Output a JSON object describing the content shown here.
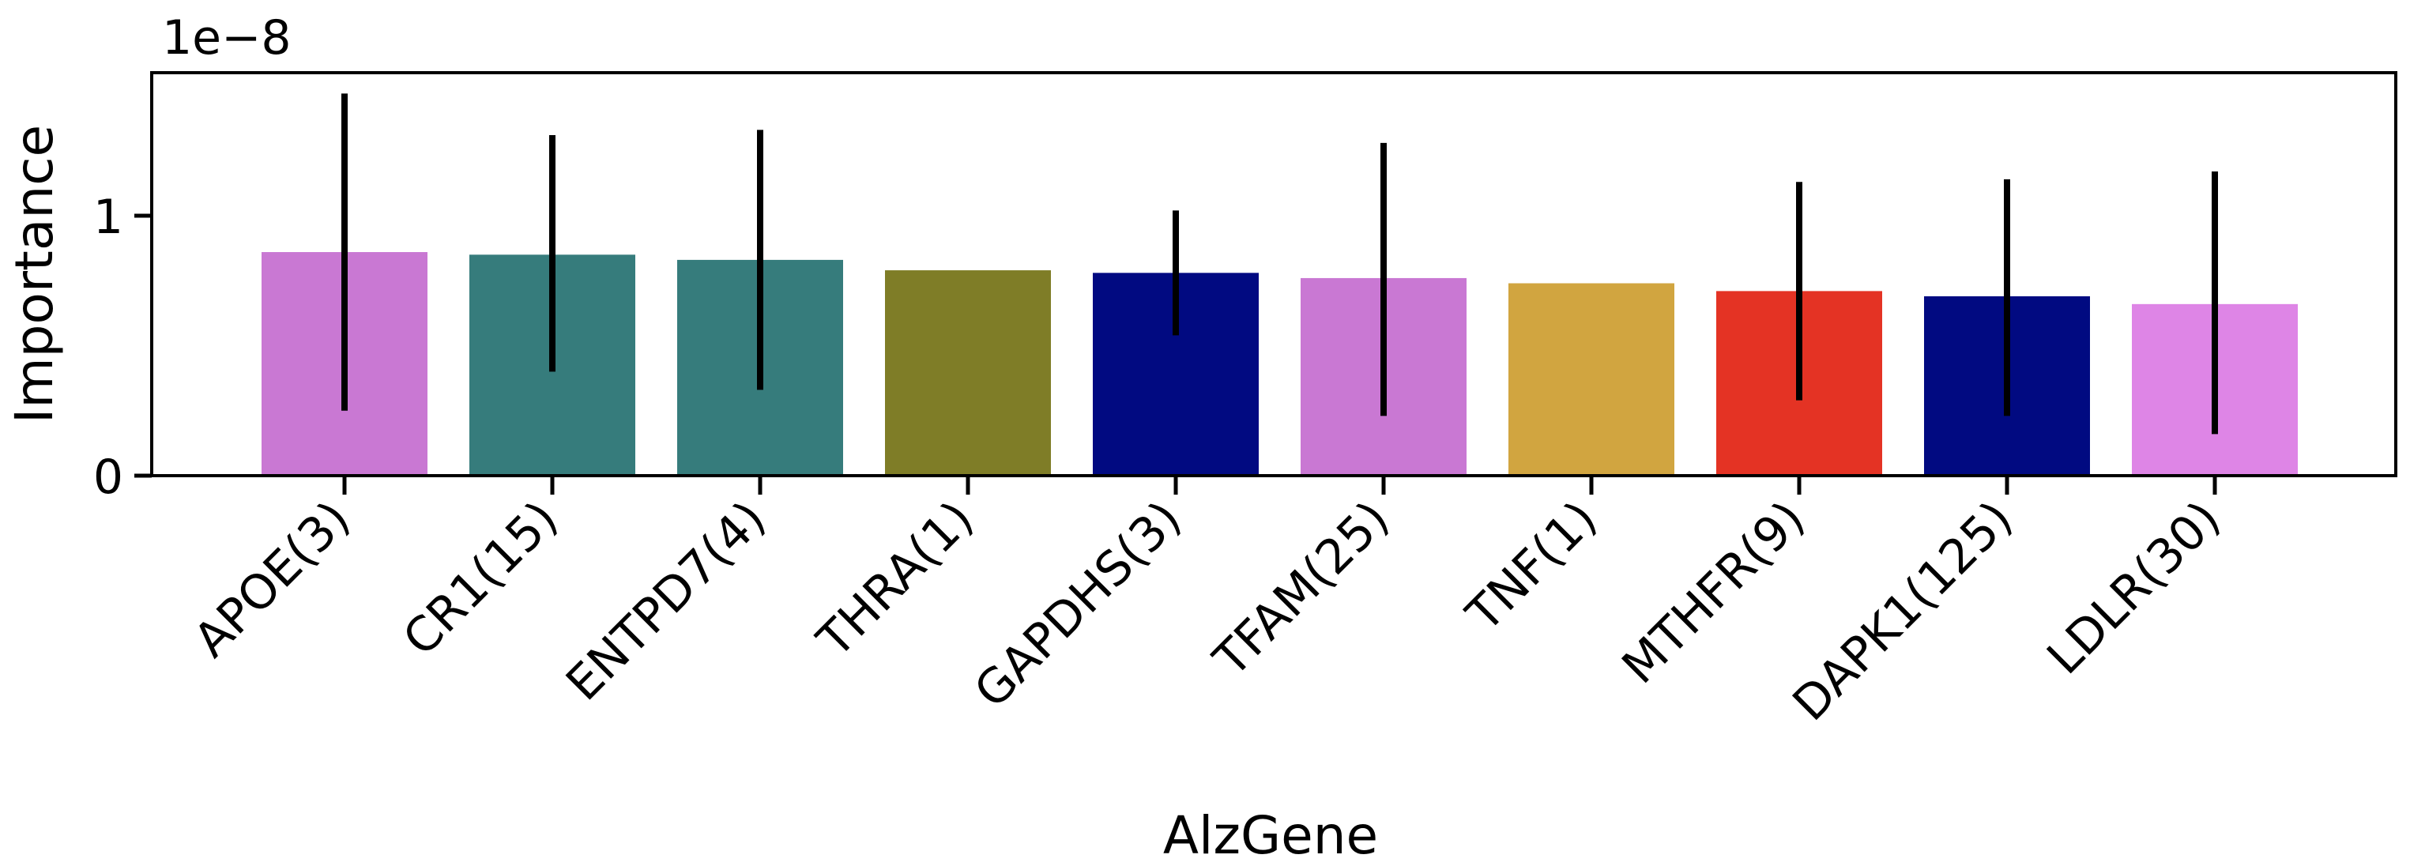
{
  "chart_data": {
    "type": "bar",
    "xlabel": "AlzGene",
    "ylabel": "Importance",
    "offset_text": "1e−8",
    "ylim": [
      0,
      1.55
    ],
    "yticks": [
      {
        "value": 0,
        "label": "0"
      },
      {
        "value": 1,
        "label": "1"
      }
    ],
    "categories": [
      "APOE(3)",
      "CR1(15)",
      "ENTPD7(4)",
      "THRA(1)",
      "GAPDHS(3)",
      "TFAM(25)",
      "TNF(1)",
      "MTHFR(9)",
      "DAPK1(125)",
      "LDLR(30)"
    ],
    "values": [
      0.86,
      0.85,
      0.83,
      0.79,
      0.78,
      0.76,
      0.74,
      0.71,
      0.69,
      0.66
    ],
    "error_low": [
      0.25,
      0.4,
      0.33,
      null,
      0.54,
      0.23,
      null,
      0.29,
      0.23,
      0.16
    ],
    "error_high": [
      1.47,
      1.31,
      1.33,
      null,
      1.02,
      1.28,
      null,
      1.13,
      1.14,
      1.17
    ],
    "colors": [
      "#C978D3",
      "#367C7C",
      "#367C7C",
      "#7F7D27",
      "#010A81",
      "#C978D3",
      "#D1A540",
      "#E43324",
      "#010A81",
      "#DE85E6"
    ],
    "grid": false,
    "legend": "none"
  }
}
